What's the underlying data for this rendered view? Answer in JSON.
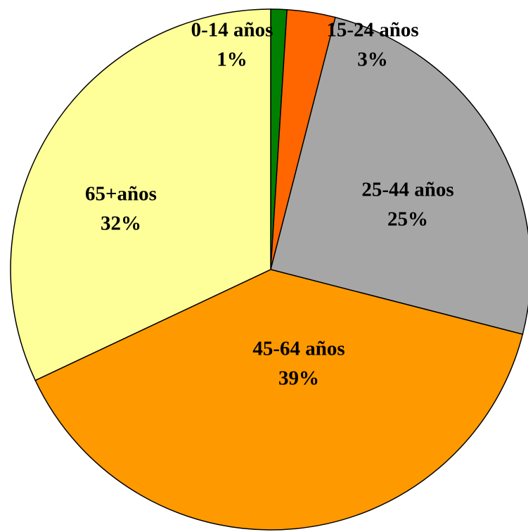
{
  "chart_data": {
    "type": "pie",
    "categories": [
      "0-14 años",
      "15-24 años",
      "25-44 años",
      "45-64 años",
      "65+años"
    ],
    "values": [
      1,
      3,
      25,
      39,
      32
    ],
    "value_labels": [
      "1%",
      "3%",
      "25%",
      "39%",
      "32%"
    ],
    "colors": [
      "#008000",
      "#ff6600",
      "#a6a6a6",
      "#ff9900",
      "#ffff99"
    ]
  }
}
